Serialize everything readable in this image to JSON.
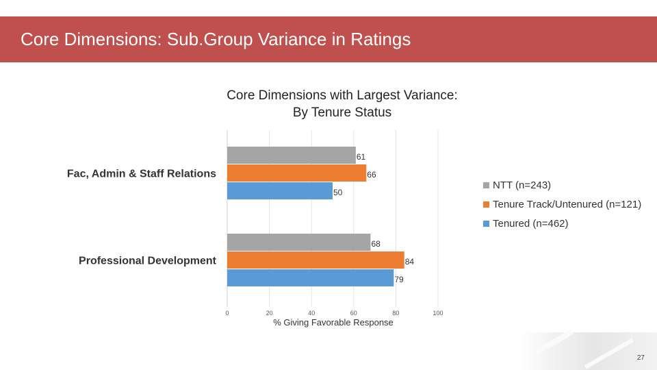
{
  "slide": {
    "title": "Core Dimensions: Sub.Group Variance in Ratings",
    "page_number": "27"
  },
  "colors": {
    "header": "#c0504d",
    "ntt": "#a5a5a5",
    "tenure_track": "#ed7d31",
    "tenured": "#5b9bd5"
  },
  "chart_data": {
    "type": "bar",
    "orientation": "horizontal",
    "title_lines": [
      "Core Dimensions with Largest Variance:",
      "By Tenure Status"
    ],
    "categories": [
      "Fac, Admin & Staff Relations",
      "Professional Development"
    ],
    "series": [
      {
        "name": "NTT (n=243)",
        "color": "#a5a5a5",
        "values": [
          61,
          68
        ]
      },
      {
        "name": "Tenure Track/Untenured (n=121)",
        "color": "#ed7d31",
        "values": [
          66,
          84
        ]
      },
      {
        "name": "Tenured (n=462)",
        "color": "#5b9bd5",
        "values": [
          50,
          79
        ]
      }
    ],
    "xlabel": "% Giving Favorable Response",
    "ylabel": "",
    "xlim": [
      0,
      100
    ],
    "xticks": [
      "0",
      "20",
      "40",
      "60",
      "80",
      "100"
    ],
    "grid": true,
    "legend": "right"
  }
}
